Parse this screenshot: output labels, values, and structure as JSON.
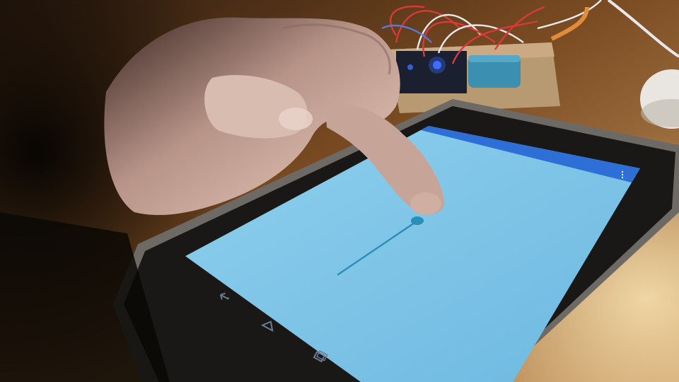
{
  "scene": {
    "description_free": true,
    "background_colors": {
      "desk": "#7a4b22",
      "desk_highlight": "#c89a62",
      "dark": "#0b0805",
      "circuit_board": "#b89a72",
      "wire_red": "#d83a3a",
      "wire_white": "#e8e8ec",
      "capacitor": "#3b8fb0",
      "led_blue": "#3d6dff"
    },
    "hand": {
      "skin": "#caa79a",
      "shadow": "#6a4c44"
    }
  },
  "tablet": {
    "bezel_color": "#1a1816",
    "frame_color": "#6d6a66",
    "screen": {
      "background": "#7ec4e6",
      "action_bar_color": "#2d6fd6",
      "app_title": "",
      "overflow_icon": "more-vert-icon",
      "drawn_line": {
        "color": "#2a8fb4",
        "start_point": "lower-left",
        "end_point": "touch"
      }
    },
    "nav_bar": {
      "icons": [
        "back-icon",
        "home-icon",
        "recents-icon"
      ],
      "color": "#0f1a2a",
      "icon_color": "#6b7b94"
    }
  }
}
